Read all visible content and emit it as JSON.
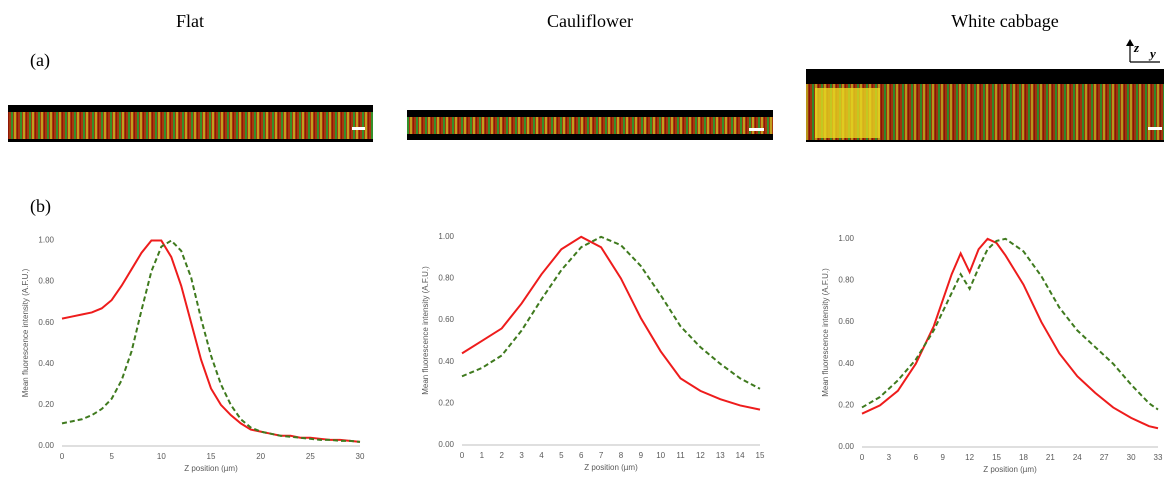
{
  "figure": {
    "panel_labels": [
      "(a)",
      "(b)"
    ],
    "axis_indicator": [
      "z",
      "y"
    ]
  },
  "chart_data": [
    {
      "type": "line",
      "title": "Flat",
      "x_label": "Z position (µm)",
      "y_label": "Mean fluorescence intensity (A.F.U.)",
      "x": [
        0,
        1,
        2,
        3,
        4,
        5,
        6,
        7,
        8,
        9,
        10,
        11,
        12,
        13,
        14,
        15,
        16,
        17,
        18,
        19,
        20,
        21,
        22,
        23,
        24,
        25,
        26,
        27,
        28,
        29,
        30
      ],
      "series": [
        {
          "color": "#ee1c1c",
          "line_style": "solid",
          "values": [
            0.62,
            0.63,
            0.64,
            0.65,
            0.67,
            0.71,
            0.78,
            0.86,
            0.94,
            1.0,
            1.0,
            0.92,
            0.78,
            0.6,
            0.42,
            0.28,
            0.2,
            0.15,
            0.11,
            0.08,
            0.07,
            0.06,
            0.05,
            0.05,
            0.04,
            0.04,
            0.035,
            0.03,
            0.03,
            0.025,
            0.02
          ]
        },
        {
          "color": "#3f7a1e",
          "line_style": "dashed",
          "values": [
            0.11,
            0.12,
            0.13,
            0.15,
            0.18,
            0.23,
            0.32,
            0.46,
            0.66,
            0.85,
            0.97,
            1.0,
            0.95,
            0.82,
            0.62,
            0.44,
            0.3,
            0.2,
            0.13,
            0.09,
            0.07,
            0.06,
            0.05,
            0.045,
            0.04,
            0.035,
            0.03,
            0.03,
            0.025,
            0.025,
            0.02
          ]
        }
      ],
      "xlim": [
        0,
        30
      ],
      "xticks": [
        0,
        5,
        10,
        15,
        20,
        25,
        30
      ],
      "ylim": [
        0,
        1.1
      ],
      "yticks": [
        {
          "value": 0,
          "label": "0.00"
        },
        {
          "value": 0.2,
          "label": "0.20"
        },
        {
          "value": 0.4,
          "label": "0.40"
        },
        {
          "value": 0.6,
          "label": "0.60"
        },
        {
          "value": 0.8,
          "label": "0.80"
        },
        {
          "value": 1,
          "label": "1.00"
        }
      ]
    },
    {
      "type": "line",
      "title": "Cauliflower",
      "x_label": "Z position (µm)",
      "y_label": "Mean fluorescence intensity (A.F.U.)",
      "x": [
        0,
        1,
        2,
        3,
        4,
        5,
        6,
        7,
        8,
        9,
        10,
        11,
        12,
        13,
        14,
        15
      ],
      "series": [
        {
          "color": "#ee1c1c",
          "line_style": "solid",
          "values": [
            0.44,
            0.5,
            0.56,
            0.68,
            0.82,
            0.94,
            1.0,
            0.95,
            0.8,
            0.61,
            0.45,
            0.32,
            0.26,
            0.22,
            0.19,
            0.17
          ]
        },
        {
          "color": "#3f7a1e",
          "line_style": "dashed",
          "values": [
            0.33,
            0.37,
            0.43,
            0.55,
            0.7,
            0.84,
            0.95,
            1.0,
            0.96,
            0.86,
            0.72,
            0.57,
            0.47,
            0.39,
            0.32,
            0.27
          ]
        }
      ],
      "xlim": [
        0,
        15
      ],
      "xticks": [
        0,
        1,
        2,
        3,
        4,
        5,
        6,
        7,
        8,
        9,
        10,
        11,
        12,
        13,
        14,
        15
      ],
      "ylim": [
        0,
        1.1
      ],
      "yticks": [
        {
          "value": 0,
          "label": "0.00"
        },
        {
          "value": 0.2,
          "label": "0.20"
        },
        {
          "value": 0.4,
          "label": "0.40"
        },
        {
          "value": 0.6,
          "label": "0.60"
        },
        {
          "value": 0.8,
          "label": "0.80"
        },
        {
          "value": 1,
          "label": "1.00"
        }
      ]
    },
    {
      "type": "line",
      "title": "White cabbage",
      "x_label": "Z position (µm)",
      "y_label": "Mean fluorescence intensity (A.F.U.)",
      "x": [
        0,
        2,
        4,
        6,
        8,
        10,
        11,
        12,
        13,
        14,
        15,
        16,
        18,
        20,
        22,
        24,
        26,
        28,
        30,
        32,
        33
      ],
      "series": [
        {
          "color": "#ee1c1c",
          "line_style": "solid",
          "values": [
            0.16,
            0.2,
            0.27,
            0.4,
            0.58,
            0.83,
            0.93,
            0.84,
            0.95,
            1.0,
            0.98,
            0.92,
            0.78,
            0.6,
            0.45,
            0.34,
            0.26,
            0.19,
            0.14,
            0.1,
            0.09
          ]
        },
        {
          "color": "#3f7a1e",
          "line_style": "dashed",
          "values": [
            0.19,
            0.24,
            0.32,
            0.42,
            0.56,
            0.74,
            0.83,
            0.76,
            0.86,
            0.95,
            0.99,
            1.0,
            0.94,
            0.82,
            0.67,
            0.56,
            0.48,
            0.4,
            0.3,
            0.21,
            0.18
          ]
        }
      ],
      "xlim": [
        0,
        33
      ],
      "xticks": [
        0,
        3,
        6,
        9,
        12,
        15,
        18,
        21,
        24,
        27,
        30,
        33
      ],
      "ylim": [
        0,
        1.1
      ],
      "yticks": [
        {
          "value": 0,
          "label": "0.00"
        },
        {
          "value": 0.2,
          "label": "0.20"
        },
        {
          "value": 0.4,
          "label": "0.40"
        },
        {
          "value": 0.6,
          "label": "0.60"
        },
        {
          "value": 0.8,
          "label": "0.80"
        },
        {
          "value": 1,
          "label": "1.00"
        }
      ]
    }
  ]
}
